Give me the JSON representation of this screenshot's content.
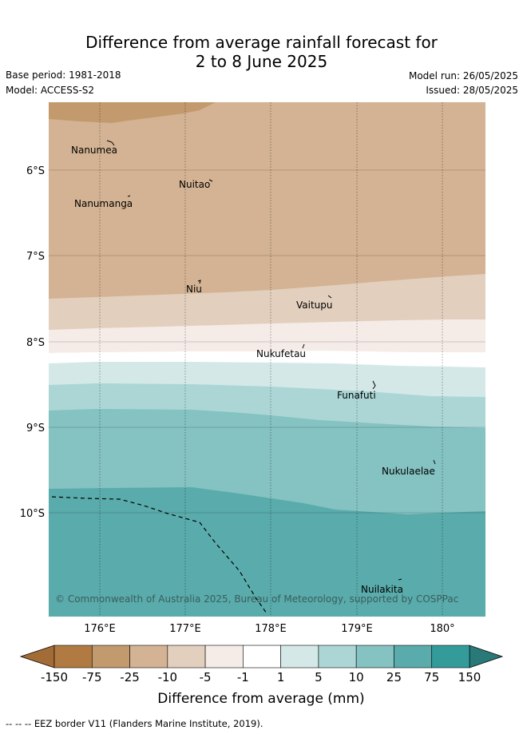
{
  "title": {
    "line1": "Difference from average rainfall forecast for",
    "line2": "2 to 8 June 2025"
  },
  "meta": {
    "base_period": "Base period: 1981-2018",
    "model": "Model: ACCESS-S2",
    "model_run": "Model run: 26/05/2025",
    "issued": "Issued: 28/05/2025"
  },
  "map": {
    "lat_labels": [
      "6°S",
      "7°S",
      "8°S",
      "9°S",
      "10°S"
    ],
    "lon_labels": [
      "176°E",
      "177°E",
      "178°E",
      "179°E",
      "180°"
    ],
    "places": [
      "Nanumea",
      "Nuitao",
      "Nanumanga",
      "Niu",
      "Vaitupu",
      "Nukufetau",
      "Funafuti",
      "Nukulaelae",
      "Nuilakita"
    ],
    "copyright": "© Commonwealth of Australia 2025, Bureau of Meteorology, supported by COSPPac"
  },
  "colorbar": {
    "ticks": [
      "-150",
      "-75",
      "-25",
      "-10",
      "-5",
      "-1",
      "1",
      "5",
      "10",
      "25",
      "75",
      "150"
    ],
    "colors": [
      "#b07a42",
      "#c29a6d",
      "#d3b393",
      "#e3cfbe",
      "#f5ece8",
      "#ffffff",
      "#d4e8e8",
      "#acd6d6",
      "#85c2c2",
      "#5aabab",
      "#349b9b"
    ],
    "under_color": "#a36c37",
    "over_color": "#2a7979",
    "label": "Difference from average (mm)"
  },
  "footer": {
    "legend_line": "--  --  -- EEZ border V11 (Flanders Marine Institute, 2019)."
  }
}
